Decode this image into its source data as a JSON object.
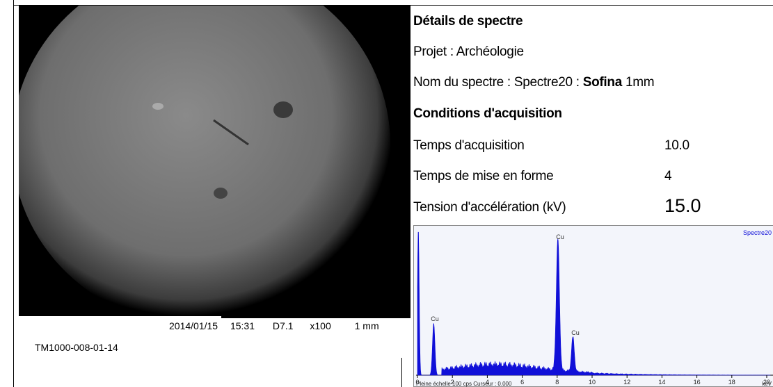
{
  "image": {
    "caption": {
      "date": "2014/01/15",
      "time": "15:31",
      "distance": "D7.1",
      "magnification": "x100",
      "scale": "1 mm"
    },
    "id": "TM1000-008-01-14"
  },
  "details": {
    "title": "Détails de spectre",
    "project": "Projet : Archéologie",
    "spectrum_name": {
      "prefix": "Nom du spectre : Spectre20 :",
      "bold": "Sofina",
      "suffix": "1mm"
    }
  },
  "conditions": {
    "title": "Conditions d'acquisition",
    "rows": [
      [
        "Temps d'acquisition",
        "10.0"
      ],
      [
        "Temps de mise en forme",
        "4"
      ],
      [
        "Tension d'accélération (kV)",
        "15.0"
      ]
    ]
  },
  "spectrum": {
    "name": "Spectre20",
    "peak_labels": [
      "Cu",
      "Cu",
      "Cu"
    ],
    "xticks": [
      0,
      2,
      4,
      6,
      8,
      10,
      12,
      14,
      16,
      18,
      20
    ],
    "unit": "keV",
    "footer": "Pleine échelle 100 cps  Curseur : 0.000"
  }
}
